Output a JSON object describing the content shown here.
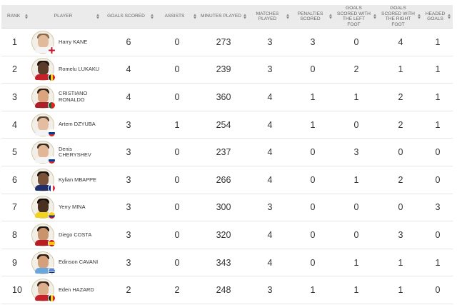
{
  "columns": [
    "RANK",
    "PLAYER",
    "GOALS SCORED",
    "ASSISTS",
    "MINUTES PLAYED",
    "MATCHES PLAYED",
    "PENALTIES SCORED",
    "GOALS SCORED WITH THE LEFT FOOT",
    "GOALS SCORED WITH THE RIGHT FOOT",
    "HEADED GOALS"
  ],
  "rows": [
    {
      "rank": "1",
      "name": "Harry KANE",
      "goals": "6",
      "assists": "0",
      "minutes": "273",
      "matches": "3",
      "penalties": "3",
      "left": "0",
      "right": "4",
      "headed": "1",
      "skin": "#e2b99a",
      "hair": "#8a6a4a",
      "shirt": "#f4f4f4",
      "flag": "england"
    },
    {
      "rank": "2",
      "name": "Romelu LUKAKU",
      "goals": "4",
      "assists": "0",
      "minutes": "239",
      "matches": "3",
      "penalties": "0",
      "left": "2",
      "right": "1",
      "headed": "1",
      "skin": "#5b3b2a",
      "hair": "#1e1410",
      "shirt": "#c8202a",
      "flag": "belgium"
    },
    {
      "rank": "3",
      "name": "CRISTIANO RONALDO",
      "goals": "4",
      "assists": "0",
      "minutes": "360",
      "matches": "4",
      "penalties": "1",
      "left": "1",
      "right": "2",
      "headed": "1",
      "skin": "#d9a47e",
      "hair": "#2a1d14",
      "shirt": "#b01e2a",
      "flag": "portugal"
    },
    {
      "rank": "4",
      "name": "Artem DZYUBA",
      "goals": "3",
      "assists": "1",
      "minutes": "254",
      "matches": "4",
      "penalties": "1",
      "left": "0",
      "right": "2",
      "headed": "1",
      "skin": "#e4bca0",
      "hair": "#5a4230",
      "shirt": "#f4f4f4",
      "flag": "russia"
    },
    {
      "rank": "5",
      "name": "Denis CHERYSHEV",
      "goals": "3",
      "assists": "0",
      "minutes": "237",
      "matches": "4",
      "penalties": "0",
      "left": "3",
      "right": "0",
      "headed": "0",
      "skin": "#e2b796",
      "hair": "#3a2a1e",
      "shirt": "#f4f4f4",
      "flag": "russia"
    },
    {
      "rank": "6",
      "name": "Kylian MBAPPE",
      "goals": "3",
      "assists": "0",
      "minutes": "266",
      "matches": "4",
      "penalties": "0",
      "left": "1",
      "right": "2",
      "headed": "0",
      "skin": "#7a5238",
      "hair": "#1e1410",
      "shirt": "#1f2f6e",
      "flag": "france"
    },
    {
      "rank": "7",
      "name": "Yerry MINA",
      "goals": "3",
      "assists": "0",
      "minutes": "300",
      "matches": "3",
      "penalties": "0",
      "left": "0",
      "right": "0",
      "headed": "3",
      "skin": "#4a3020",
      "hair": "#120c08",
      "shirt": "#f2d21a",
      "flag": "colombia"
    },
    {
      "rank": "8",
      "name": "Diego COSTA",
      "goals": "3",
      "assists": "0",
      "minutes": "320",
      "matches": "4",
      "penalties": "0",
      "left": "0",
      "right": "3",
      "headed": "0",
      "skin": "#c9936c",
      "hair": "#1e1410",
      "shirt": "#b81d24",
      "flag": "spain"
    },
    {
      "rank": "9",
      "name": "Edinson CAVANI",
      "goals": "3",
      "assists": "0",
      "minutes": "343",
      "matches": "4",
      "penalties": "0",
      "left": "1",
      "right": "1",
      "headed": "1",
      "skin": "#d4a07a",
      "hair": "#2a1d14",
      "shirt": "#6aa6de",
      "flag": "uruguay"
    },
    {
      "rank": "10",
      "name": "Eden HAZARD",
      "goals": "2",
      "assists": "2",
      "minutes": "248",
      "matches": "3",
      "penalties": "1",
      "left": "1",
      "right": "1",
      "headed": "0",
      "skin": "#dcae8c",
      "hair": "#3a2a1e",
      "shirt": "#c8202a",
      "flag": "belgium"
    }
  ]
}
